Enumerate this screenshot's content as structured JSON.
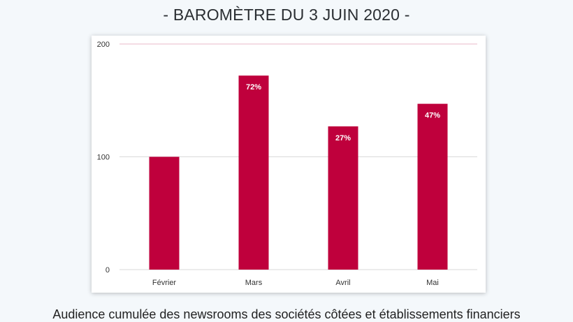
{
  "page": {
    "title": "- BAROMÈTRE DU 3 JUIN 2020 -",
    "caption": "Audience cumulée des newsrooms des sociétés côtées et établissements financiers"
  },
  "colors": {
    "bar": "#bf003c",
    "gridline_top": "#e8b9c8",
    "gridline": "#d9d9d9",
    "axis_text": "#333333",
    "data_label": "#ffffff"
  },
  "chart_data": {
    "type": "bar",
    "categories": [
      "Février",
      "Mars",
      "Avril",
      "Mai"
    ],
    "values": [
      100,
      172,
      127,
      147
    ],
    "data_labels": [
      "",
      "72%",
      "27%",
      "47%"
    ],
    "yticks": [
      "0",
      "100",
      "200"
    ],
    "ylim": [
      0,
      200
    ],
    "grid": true,
    "legend": "none"
  }
}
